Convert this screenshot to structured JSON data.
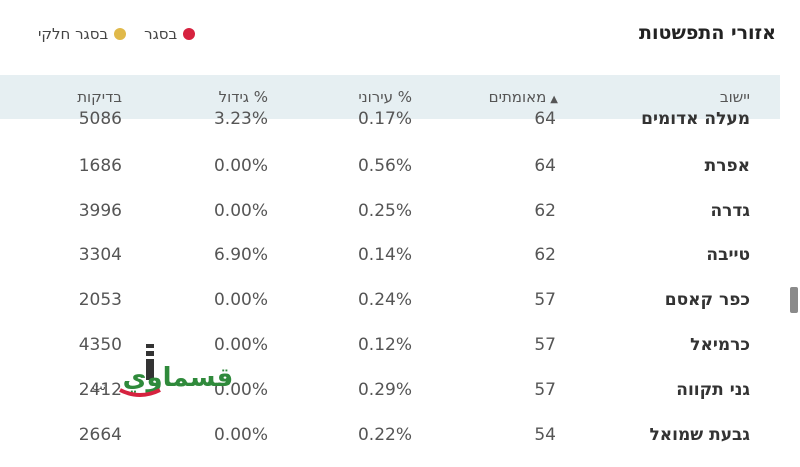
{
  "title": "אזורי התפשטות",
  "legend": [
    {
      "label": "בסגר",
      "color": "#d6223f"
    },
    {
      "label": "בסגר חלקי",
      "color": "#e0b94a"
    }
  ],
  "columns": {
    "town": "יישוב",
    "confirmed": "מאומתים",
    "urban": "% עירוני",
    "growth": "% גידול",
    "tests": "בדיקות"
  },
  "rows": [
    {
      "town": "מעלה אדומים",
      "confirmed": "64",
      "urban": "0.17%",
      "growth": "3.23%",
      "tests": "5086"
    },
    {
      "town": "אפרת",
      "confirmed": "64",
      "urban": "0.56%",
      "growth": "0.00%",
      "tests": "1686"
    },
    {
      "town": "גדרה",
      "confirmed": "62",
      "urban": "0.25%",
      "growth": "0.00%",
      "tests": "3996"
    },
    {
      "town": "טייבה",
      "confirmed": "62",
      "urban": "0.14%",
      "growth": "6.90%",
      "tests": "3304"
    },
    {
      "town": "כפר קאסם",
      "confirmed": "57",
      "urban": "0.24%",
      "growth": "0.00%",
      "tests": "2053"
    },
    {
      "town": "כרמיאל",
      "confirmed": "57",
      "urban": "0.12%",
      "growth": "0.00%",
      "tests": "4350"
    },
    {
      "town": "גני תקווה",
      "confirmed": "57",
      "urban": "0.29%",
      "growth": "0.00%",
      "tests": "2412"
    },
    {
      "town": "גבעת שמואל",
      "confirmed": "54",
      "urban": "0.22%",
      "growth": "0.00%",
      "tests": "2664"
    }
  ],
  "watermark": {
    "text": "قسماوي نت"
  },
  "colors": {
    "header_bg": "#e6eff2",
    "closed": "#d6223f",
    "partial": "#e0b94a"
  }
}
